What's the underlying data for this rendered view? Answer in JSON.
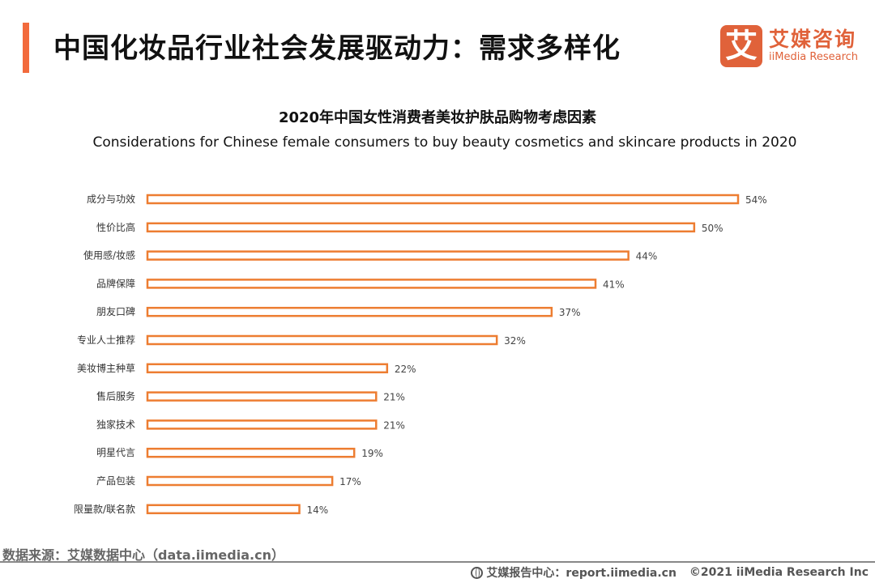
{
  "header": {
    "title": "中国化妆品行业社会发展驱动力：需求多样化",
    "accent_color": "#f26a3c"
  },
  "logo": {
    "mark": "艾",
    "name_cn": "艾媒咨询",
    "name_en": "iiMedia Research",
    "color": "#e0623a"
  },
  "chart_data": {
    "type": "bar",
    "orientation": "horizontal",
    "title": "2020年中国女性消费者美妆护肤品购物考虑因素",
    "subtitle": "Considerations for Chinese female consumers to buy beauty cosmetics and skincare products in 2020",
    "categories": [
      "成分与功效",
      "性价比高",
      "使用感/妆感",
      "品牌保障",
      "朋友口碑",
      "专业人士推荐",
      "美妆博主种草",
      "售后服务",
      "独家技术",
      "明星代言",
      "产品包装",
      "限量款/联名款"
    ],
    "values": [
      54,
      50,
      44,
      41,
      37,
      32,
      22,
      21,
      21,
      19,
      17,
      14
    ],
    "value_labels": [
      "54%",
      "50%",
      "44%",
      "41%",
      "37%",
      "32%",
      "22%",
      "21%",
      "21%",
      "19%",
      "17%",
      "14%"
    ],
    "unit": "%",
    "xlabel": "",
    "ylabel": "",
    "xlim": [
      0,
      54
    ],
    "grid": false,
    "legend": "none",
    "bar_style": "outlined",
    "bar_color": "#ed7d31"
  },
  "footer": {
    "source": "数据来源：艾媒数据中心（data.iimedia.cn）",
    "report_center": "艾媒报告中心：report.iimedia.cn",
    "copyright": "©2021  iiMedia Research  Inc"
  }
}
